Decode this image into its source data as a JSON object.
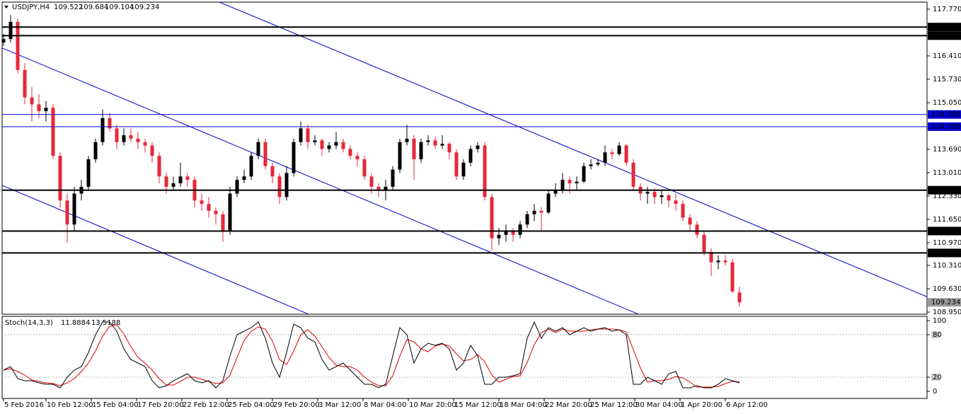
{
  "chart_data": [
    {
      "type": "candlestick",
      "title": "USDJPY,H4",
      "up_color": "#000000",
      "down_color": "#e6273a",
      "xlim": [
        -0.2,
        130.5
      ],
      "ylim": [
        108.888,
        117.976
      ],
      "xticks": [
        {
          "value": 0,
          "label": "5 Feb 2016"
        },
        {
          "value": 6,
          "label": "10 Feb 12:00"
        },
        {
          "value": 12.4,
          "label": "15 Feb 04:00"
        },
        {
          "value": 18.8,
          "label": "17 Feb 20:00"
        },
        {
          "value": 25.2,
          "label": "22 Feb 12:00"
        },
        {
          "value": 31.6,
          "label": "25 Feb 04:00"
        },
        {
          "value": 38,
          "label": "29 Feb 20:00"
        },
        {
          "value": 44.4,
          "label": "3 Mar 12:00"
        },
        {
          "value": 50.8,
          "label": "8 Mar 04:00"
        },
        {
          "value": 57.2,
          "label": "10 Mar 20:00"
        },
        {
          "value": 63.6,
          "label": "15 Mar 12:00"
        },
        {
          "value": 70,
          "label": "18 Mar 04:00"
        },
        {
          "value": 76.4,
          "label": "22 Mar 20:00"
        },
        {
          "value": 82.8,
          "label": "25 Mar 12:00"
        },
        {
          "value": 89.2,
          "label": "30 Mar 04:00"
        },
        {
          "value": 95.6,
          "label": "1 Apr 20:00"
        },
        {
          "value": 102,
          "label": "6 Apr 12:00"
        }
      ],
      "yticks": [
        {
          "value": 117.77,
          "label": "117.770"
        },
        {
          "value": 116.41,
          "label": "116.410"
        },
        {
          "value": 115.73,
          "label": "115.730"
        },
        {
          "value": 115.05,
          "label": "115.050"
        },
        {
          "value": 113.69,
          "label": "113.690"
        },
        {
          "value": 113.01,
          "label": "113.010"
        },
        {
          "value": 112.33,
          "label": "112.330"
        },
        {
          "value": 111.65,
          "label": "111.650"
        },
        {
          "value": 110.97,
          "label": "110.970"
        },
        {
          "value": 110.31,
          "label": "110.310"
        },
        {
          "value": 109.63,
          "label": "109.630"
        },
        {
          "value": 108.95,
          "label": "108.950"
        }
      ],
      "levels": [
        {
          "value": 117.25,
          "label": "117.250",
          "color": "#000000"
        },
        {
          "value": 117.0,
          "label": "117.000",
          "color": "#000000"
        },
        {
          "value": 114.705,
          "label": "114.705",
          "color": "#0000cd"
        },
        {
          "value": 114.35,
          "label": "114.350",
          "color": "#0000cd"
        },
        {
          "value": 112.5,
          "label": "112.500",
          "color": "#000000"
        },
        {
          "value": 111.31,
          "label": "111.310",
          "color": "#000000"
        },
        {
          "value": 110.672,
          "label": "110.672",
          "color": "#000000"
        }
      ],
      "current_price_color": "#9a9a9a",
      "trendlines": [
        {
          "color": "#0000cd",
          "points": [
            [
              30.5,
              117.976
            ],
            [
              130.7,
              109.38
            ]
          ]
        },
        {
          "color": "#0000cd",
          "points": [
            [
              -0.2,
              116.64
            ],
            [
              89.7,
              108.89
            ]
          ]
        },
        {
          "color": "#0000cd",
          "points": [
            [
              -0.2,
              112.64
            ],
            [
              43.1,
              108.89
            ]
          ]
        }
      ],
      "candles": [
        [
          116.8,
          117.05,
          116.7,
          116.9
        ],
        [
          116.9,
          117.6,
          116.8,
          117.4
        ],
        [
          117.4,
          117.5,
          115.9,
          116.0
        ],
        [
          116.0,
          116.2,
          115.0,
          115.2
        ],
        [
          115.2,
          115.5,
          114.5,
          115.0
        ],
        [
          115.0,
          115.3,
          114.6,
          114.8
        ],
        [
          114.8,
          115.1,
          114.5,
          114.9
        ],
        [
          114.9,
          115.0,
          113.4,
          113.5
        ],
        [
          113.5,
          113.6,
          112.0,
          112.2
        ],
        [
          112.2,
          112.4,
          110.97,
          111.5
        ],
        [
          111.5,
          112.6,
          111.3,
          112.4
        ],
        [
          112.4,
          112.8,
          112.2,
          112.6
        ],
        [
          112.6,
          113.5,
          112.5,
          113.4
        ],
        [
          113.4,
          114.0,
          113.3,
          113.9
        ],
        [
          113.9,
          114.85,
          113.8,
          114.6
        ],
        [
          114.6,
          114.75,
          114.2,
          114.3
        ],
        [
          114.3,
          114.4,
          113.7,
          113.9
        ],
        [
          113.9,
          114.3,
          113.8,
          114.1
        ],
        [
          114.1,
          114.3,
          113.9,
          114.0
        ],
        [
          114.0,
          114.2,
          113.7,
          113.9
        ],
        [
          113.9,
          114.0,
          113.6,
          113.8
        ],
        [
          113.8,
          113.9,
          113.3,
          113.5
        ],
        [
          113.5,
          113.6,
          112.7,
          112.9
        ],
        [
          112.9,
          113.0,
          112.4,
          112.6
        ],
        [
          112.6,
          112.9,
          112.5,
          112.7
        ],
        [
          112.7,
          113.3,
          112.6,
          112.9
        ],
        [
          112.9,
          113.0,
          112.6,
          112.8
        ],
        [
          112.8,
          112.9,
          112.0,
          112.2
        ],
        [
          112.2,
          112.4,
          111.9,
          112.1
        ],
        [
          112.1,
          112.3,
          111.7,
          111.9
        ],
        [
          111.9,
          112.0,
          111.5,
          111.8
        ],
        [
          111.8,
          111.9,
          111.0,
          111.3
        ],
        [
          111.3,
          112.6,
          111.2,
          112.4
        ],
        [
          112.4,
          112.9,
          112.3,
          112.8
        ],
        [
          112.8,
          113.1,
          112.7,
          112.9
        ],
        [
          112.9,
          113.6,
          112.8,
          113.5
        ],
        [
          113.5,
          114.0,
          113.4,
          113.9
        ],
        [
          113.9,
          114.0,
          113.1,
          113.2
        ],
        [
          113.2,
          113.3,
          112.7,
          112.9
        ],
        [
          112.9,
          113.0,
          112.1,
          112.3
        ],
        [
          112.3,
          113.2,
          112.2,
          113.0
        ],
        [
          113.0,
          114.0,
          112.9,
          113.9
        ],
        [
          113.9,
          114.5,
          113.8,
          114.3
        ],
        [
          114.3,
          114.4,
          113.7,
          113.9
        ],
        [
          113.9,
          114.1,
          113.8,
          113.95
        ],
        [
          113.95,
          114.0,
          113.5,
          113.7
        ],
        [
          113.7,
          113.9,
          113.6,
          113.8
        ],
        [
          113.8,
          114.2,
          113.7,
          113.9
        ],
        [
          113.9,
          114.0,
          113.6,
          113.7
        ],
        [
          113.7,
          113.8,
          113.4,
          113.5
        ],
        [
          113.5,
          113.6,
          113.2,
          113.4
        ],
        [
          113.4,
          113.5,
          112.8,
          112.9
        ],
        [
          112.9,
          113.0,
          112.4,
          112.6
        ],
        [
          112.6,
          112.7,
          112.3,
          112.5
        ],
        [
          112.5,
          112.8,
          112.2,
          112.6
        ],
        [
          112.6,
          113.2,
          112.5,
          113.1
        ],
        [
          113.1,
          114.0,
          113.0,
          113.9
        ],
        [
          113.9,
          114.4,
          113.8,
          114.0
        ],
        [
          114.0,
          114.1,
          112.8,
          113.4
        ],
        [
          113.4,
          114.0,
          113.3,
          113.9
        ],
        [
          113.9,
          114.1,
          113.8,
          113.95
        ],
        [
          113.95,
          114.05,
          113.7,
          113.8
        ],
        [
          113.8,
          114.1,
          113.7,
          113.85
        ],
        [
          113.85,
          113.9,
          113.4,
          113.6
        ],
        [
          113.6,
          113.7,
          112.8,
          112.9
        ],
        [
          112.9,
          113.4,
          112.8,
          113.3
        ],
        [
          113.3,
          113.8,
          113.2,
          113.7
        ],
        [
          113.7,
          113.9,
          113.6,
          113.8
        ],
        [
          113.8,
          113.9,
          112.2,
          112.3
        ],
        [
          112.3,
          112.4,
          110.75,
          111.1
        ],
        [
          111.1,
          111.4,
          110.9,
          111.2
        ],
        [
          111.2,
          111.5,
          111.0,
          111.3
        ],
        [
          111.3,
          111.4,
          111.0,
          111.2
        ],
        [
          111.2,
          111.6,
          111.1,
          111.5
        ],
        [
          111.5,
          111.9,
          111.4,
          111.8
        ],
        [
          111.8,
          112.1,
          111.6,
          111.9
        ],
        [
          111.9,
          112.0,
          111.3,
          111.85
        ],
        [
          111.85,
          112.5,
          111.8,
          112.4
        ],
        [
          112.4,
          112.7,
          112.3,
          112.5
        ],
        [
          112.5,
          113.0,
          112.4,
          112.8
        ],
        [
          112.8,
          112.9,
          112.4,
          112.7
        ],
        [
          112.7,
          112.9,
          112.5,
          112.75
        ],
        [
          112.75,
          113.3,
          112.7,
          113.2
        ],
        [
          113.2,
          113.4,
          113.1,
          113.25
        ],
        [
          113.25,
          113.4,
          113.2,
          113.3
        ],
        [
          113.3,
          113.8,
          113.2,
          113.6
        ],
        [
          113.6,
          113.7,
          113.4,
          113.55
        ],
        [
          113.55,
          113.9,
          113.5,
          113.8
        ],
        [
          113.8,
          113.85,
          113.2,
          113.3
        ],
        [
          113.3,
          113.4,
          112.5,
          112.6
        ],
        [
          112.6,
          112.7,
          112.2,
          112.4
        ],
        [
          112.4,
          112.6,
          112.1,
          112.45
        ],
        [
          112.45,
          112.55,
          112.1,
          112.3
        ],
        [
          112.3,
          112.5,
          112.1,
          112.35
        ],
        [
          112.35,
          112.4,
          112.0,
          112.2
        ],
        [
          112.2,
          112.4,
          111.9,
          112.1
        ],
        [
          112.1,
          112.2,
          111.6,
          111.7
        ],
        [
          111.7,
          111.8,
          111.3,
          111.5
        ],
        [
          111.5,
          111.6,
          111.1,
          111.2
        ],
        [
          111.2,
          111.3,
          110.6,
          110.7
        ],
        [
          110.7,
          110.8,
          110.0,
          110.4
        ],
        [
          110.4,
          110.6,
          110.2,
          110.45
        ],
        [
          110.45,
          110.6,
          110.3,
          110.4
        ],
        [
          110.4,
          110.5,
          109.5,
          109.55
        ],
        [
          109.522,
          109.684,
          109.104,
          109.234
        ]
      ]
    },
    {
      "type": "line",
      "title": "Stoch(14,3,3)",
      "xlim": [
        -0.2,
        130.5
      ],
      "ylim": [
        -10,
        106
      ],
      "yticks": [
        100,
        80,
        20,
        0
      ],
      "levels": [
        80,
        20
      ],
      "series": [
        {
          "color": "#000000",
          "values": [
            30,
            35,
            18,
            15,
            15,
            12,
            10,
            10,
            5,
            20,
            30,
            35,
            55,
            80,
            98,
            98,
            85,
            60,
            45,
            40,
            35,
            15,
            5,
            8,
            15,
            20,
            25,
            15,
            12,
            15,
            5,
            15,
            50,
            80,
            85,
            90,
            98,
            75,
            40,
            20,
            55,
            95,
            90,
            75,
            70,
            45,
            30,
            35,
            40,
            30,
            20,
            10,
            10,
            5,
            10,
            50,
            90,
            80,
            40,
            60,
            68,
            65,
            68,
            60,
            30,
            40,
            65,
            50,
            10,
            10,
            20,
            20,
            22,
            25,
            75,
            98,
            75,
            90,
            85,
            90,
            80,
            85,
            90,
            85,
            88,
            90,
            85,
            87,
            80,
            10,
            10,
            20,
            15,
            10,
            25,
            28,
            5,
            5,
            8,
            5,
            5,
            10,
            18,
            15,
            11.8884
          ]
        },
        {
          "color": "#e00000",
          "values": [
            30,
            32,
            28,
            23,
            16,
            14,
            12,
            11,
            8,
            12,
            18,
            28,
            40,
            57,
            78,
            92,
            94,
            81,
            63,
            48,
            40,
            30,
            18,
            9,
            9,
            14,
            20,
            20,
            17,
            14,
            11,
            12,
            23,
            48,
            72,
            85,
            91,
            88,
            71,
            45,
            38,
            57,
            80,
            87,
            78,
            63,
            48,
            37,
            35,
            35,
            30,
            20,
            13,
            8,
            8,
            22,
            50,
            73,
            70,
            60,
            56,
            64,
            67,
            64,
            53,
            43,
            45,
            52,
            42,
            23,
            13,
            17,
            21,
            22,
            41,
            66,
            83,
            88,
            83,
            88,
            85,
            85,
            85,
            87,
            88,
            88,
            88,
            87,
            84,
            59,
            33,
            13,
            15,
            15,
            17,
            21,
            19,
            13,
            6,
            6,
            6,
            7,
            11,
            14,
            13.5188
          ]
        }
      ]
    }
  ]
}
